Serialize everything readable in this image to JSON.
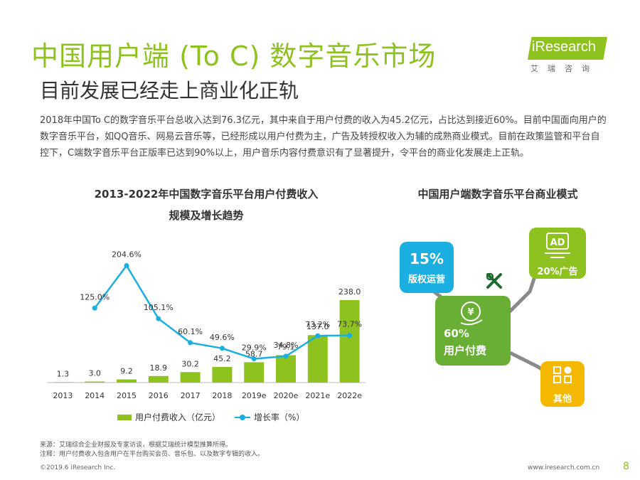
{
  "header": {
    "title": "中国用户端 (To C) 数字音乐市场",
    "subtitle": "目前发展已经走上商业化正轨"
  },
  "logo": {
    "brand": "iResearch",
    "cn": "艾瑞咨询"
  },
  "intro": "2018年中国To C的数字音乐平台总收入达到76.3亿元，其中来自于用户付费的收入为45.2亿元，占比达到接近60%。目前中国面向用户的数字音乐平台，如QQ音乐、网易云音乐等，已经形成以用户付费为主，广告及转授权收入为辅的成熟商业模式。目前在政策监管和平台自控下，C端数字音乐平台正版率已达到90%以上，用户音乐内容付费意识有了显著提升，令平台的商业化发展走上正轨。",
  "chart_data": {
    "type": "bar",
    "title": "2013-2022年中国数字音乐平台用户付费收入",
    "subtitle": "规模及增长趋势",
    "categories": [
      "2013",
      "2014",
      "2015",
      "2016",
      "2017",
      "2018",
      "2019e",
      "2020e",
      "2021e",
      "2022e"
    ],
    "series": [
      {
        "name": "用户付费收入（亿元）",
        "type": "bar",
        "values": [
          1.3,
          3.0,
          9.2,
          18.9,
          30.2,
          45.2,
          58.7,
          79.1,
          137.0,
          238.0
        ],
        "labels": [
          "1.3",
          "3.0",
          "9.2",
          "18.9",
          "30.2",
          "45.2",
          "58.7",
          "79.1",
          "137.0",
          "238.0"
        ]
      },
      {
        "name": "增长率（%）",
        "type": "line",
        "values": [
          null,
          125.0,
          204.6,
          105.1,
          60.1,
          49.6,
          29.9,
          34.8,
          73.2,
          73.7
        ],
        "labels": [
          "",
          "125.0%",
          "204.6%",
          "105.1%",
          "60.1%",
          "49.6%",
          "29.9%",
          "34.8%",
          "73.2%",
          "73.7%"
        ]
      }
    ],
    "legend_position": "bottom",
    "grid": false
  },
  "model": {
    "title": "中国用户端数字音乐平台商业模式",
    "copyright": {
      "pct": "15%",
      "label": "版权运营"
    },
    "user_pay": {
      "pct": "60%",
      "label": "用户付费"
    },
    "ads": {
      "label": "20%广告",
      "icon_text": "AD"
    },
    "other": {
      "label": "其他"
    }
  },
  "notes": {
    "source": "来源：艾瑞综合企业财报及专家访谈，根据艾瑞统计模型推算所得。",
    "note": "注释：用户付费收入包含用户在平台购买会员、音乐包、以及数字专辑的收入。"
  },
  "footer": {
    "copyright": "©2019.6 iResearch Inc.",
    "website": "www.iresearch.com.cn",
    "page": "8"
  },
  "colors": {
    "accent": "#8dc21f",
    "line": "#1aaee1",
    "box_green": "#6aaf35",
    "box_yellow": "#f5b800"
  }
}
